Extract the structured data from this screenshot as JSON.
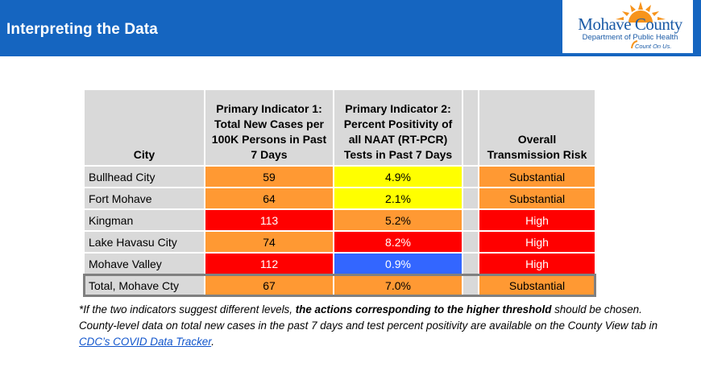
{
  "header": {
    "title": "Interpreting the Data"
  },
  "logo": {
    "name": "Mohave County",
    "department": "Department of Public Health",
    "tagline": "Count On Us."
  },
  "table": {
    "headers": {
      "city": "City",
      "indicator1": "Primary Indicator 1: Total New Cases per 100K Persons in Past 7 Days",
      "indicator2": "Primary Indicator 2: Percent Positivity of all NAAT (RT-PCR) Tests in Past 7 Days",
      "risk": "Overall Transmission Risk"
    },
    "rows": [
      {
        "city": "Bullhead City",
        "cases": "59",
        "positivity": "4.9%",
        "risk": "Substantial"
      },
      {
        "city": "Fort Mohave",
        "cases": "64",
        "positivity": "2.1%",
        "risk": "Substantial"
      },
      {
        "city": "Kingman",
        "cases": "113",
        "positivity": "5.2%",
        "risk": "High"
      },
      {
        "city": "Lake Havasu City",
        "cases": "74",
        "positivity": "8.2%",
        "risk": "High"
      },
      {
        "city": "Mohave Valley",
        "cases": "112",
        "positivity": "0.9%",
        "risk": "High"
      },
      {
        "city": "Total, Mohave Cty",
        "cases": "67",
        "positivity": "7.0%",
        "risk": "Substantial"
      }
    ]
  },
  "colors": {
    "header_blue": "#1565c0",
    "substantial_orange": "#ff9933",
    "high_red": "#ff0000",
    "moderate_yellow": "#ffff00",
    "low_blue": "#3366ff",
    "header_gray": "#d9d9d9"
  },
  "footnote": {
    "part1": "*If the two indicators suggest different levels, ",
    "bold": "the actions corresponding to the higher threshold",
    "part2": " should be chosen. County-level data on total new cases in the past 7 days and test percent positivity are available on the County View tab in ",
    "link": "CDC’s COVID Data Tracker",
    "part3": "."
  }
}
